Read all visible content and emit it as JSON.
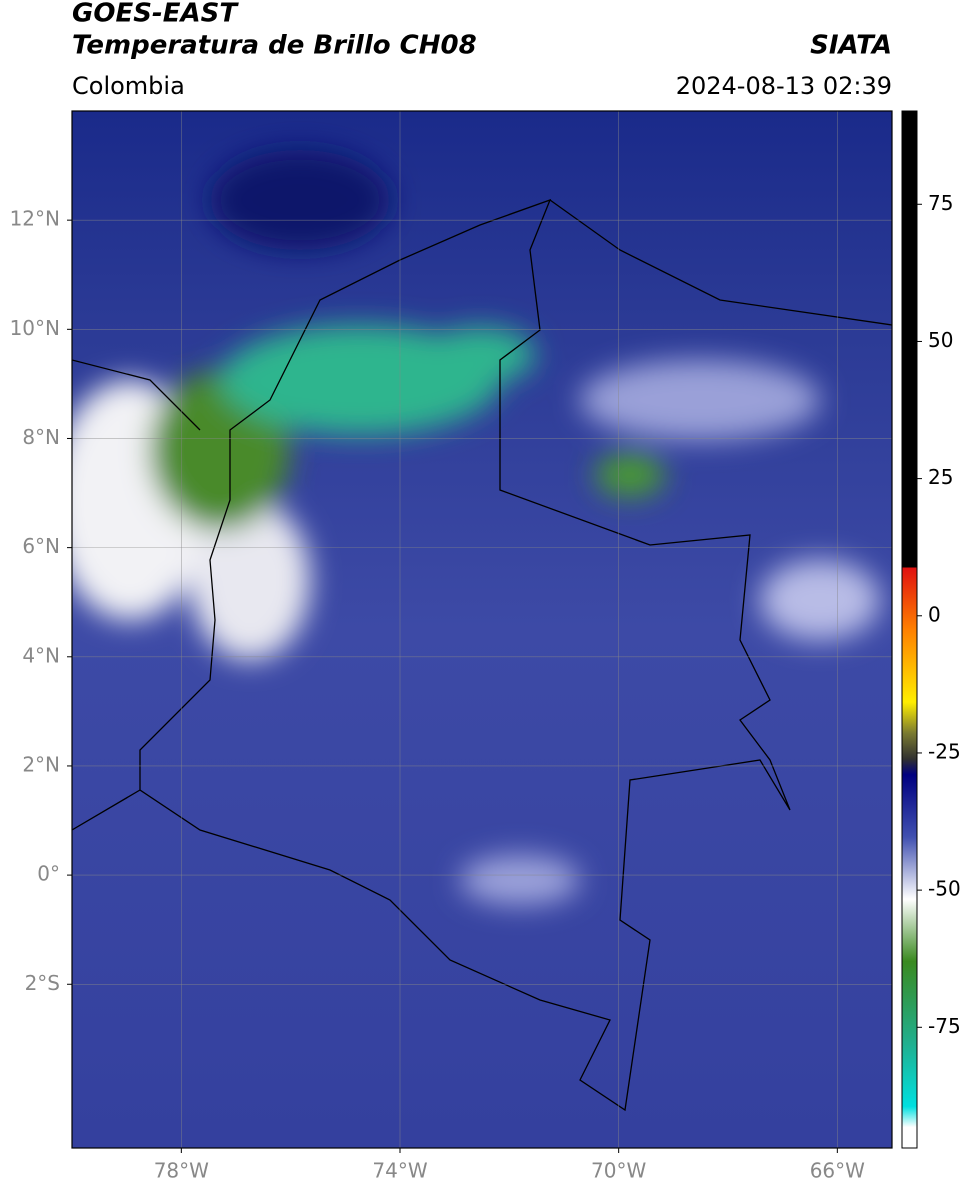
{
  "header": {
    "title": "GOES-EAST",
    "subtitle": "Temperatura de Brillo CH08",
    "source": "SIATA",
    "region": "Colombia",
    "datetime": "2024-08-13 02:39"
  },
  "map": {
    "xlim": [
      -80,
      -65
    ],
    "ylim": [
      -5,
      14
    ],
    "xticks": [
      {
        "value": -78,
        "label": "78°W"
      },
      {
        "value": -74,
        "label": "74°W"
      },
      {
        "value": -70,
        "label": "70°W"
      },
      {
        "value": -66,
        "label": "66°W"
      }
    ],
    "yticks": [
      {
        "value": 12,
        "label": "12°N"
      },
      {
        "value": 10,
        "label": "10°N"
      },
      {
        "value": 8,
        "label": "8°N"
      },
      {
        "value": 6,
        "label": "6°N"
      },
      {
        "value": 4,
        "label": "4°N"
      },
      {
        "value": 2,
        "label": "2°N"
      },
      {
        "value": 0,
        "label": "0°"
      },
      {
        "value": -2,
        "label": "2°S"
      }
    ],
    "grid": true
  },
  "colorbar": {
    "ylim": [
      -97,
      92
    ],
    "yticks": [
      75,
      50,
      25,
      0,
      -25,
      -50,
      -75
    ]
  }
}
